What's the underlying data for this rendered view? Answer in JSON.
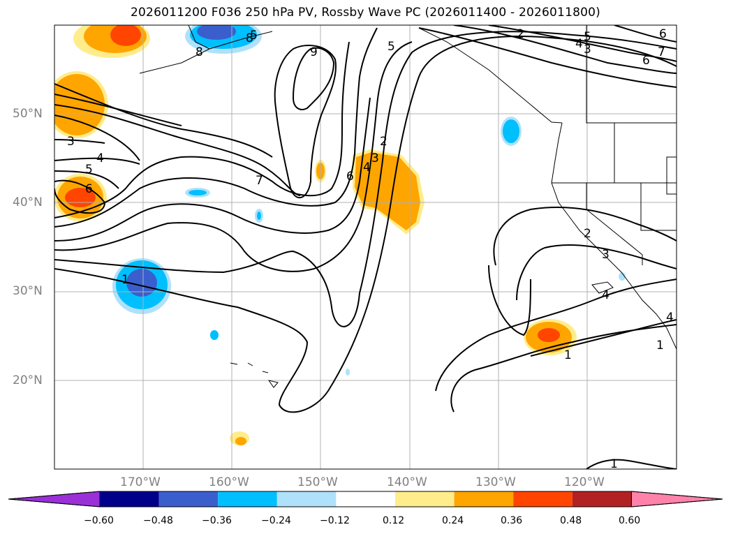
{
  "title": "2026011200 F036 250 hPa PV, Rossby Wave PC (2026011400 - 2026011800)",
  "lat_labels": [
    "50°N",
    "40°N",
    "30°N",
    "20°N"
  ],
  "lon_labels": [
    "170°W",
    "160°W",
    "150°W",
    "140°W",
    "130°W",
    "120°W"
  ],
  "colorbar": {
    "colors": [
      "#9b30d9",
      "#00008b",
      "#3a5fcd",
      "#00bfff",
      "#afe1fa",
      "#ffffff",
      "#ffec8b",
      "#ffa500",
      "#ff4500",
      "#b22222",
      "#ff82ab"
    ],
    "tick_labels": [
      "−0.60",
      "−0.48",
      "−0.36",
      "−0.24",
      "−0.12",
      "0.12",
      "0.24",
      "0.36",
      "0.48",
      "0.60"
    ]
  },
  "contour_labels": [
    "2",
    "5",
    "4",
    "3",
    "6",
    "7",
    "5",
    "6",
    "8",
    "9",
    "5",
    "4",
    "6",
    "3",
    "4",
    "5",
    "6",
    "7",
    "8",
    "2",
    "3",
    "4",
    "1",
    "1",
    "2",
    "3",
    "4",
    "1",
    "1"
  ]
}
